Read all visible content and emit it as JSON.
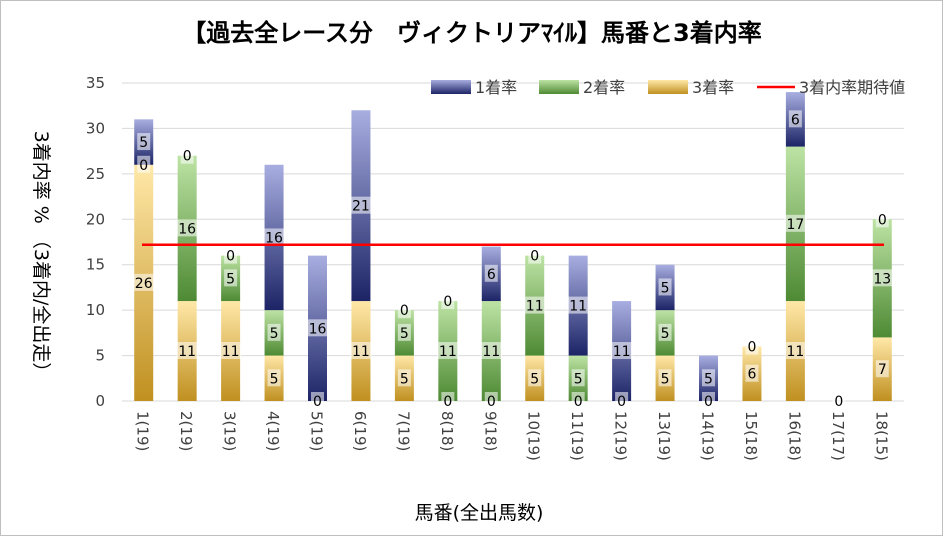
{
  "chart_data": {
    "type": "bar",
    "stacked": true,
    "title": "【過去全レース分　ヴィクトリアﾏｲﾙ】馬番と3着内率",
    "xlabel": "馬番(全出馬数)",
    "ylabel": "3着内率 %  （3着内/全出走）",
    "ylim": [
      0,
      35
    ],
    "yticks": [
      0,
      5,
      10,
      15,
      20,
      25,
      30,
      35
    ],
    "grid": true,
    "legend_position": "top-right",
    "categories": [
      "1(19)",
      "2(19)",
      "3(19)",
      "4(19)",
      "5(19)",
      "6(19)",
      "7(19)",
      "8(18)",
      "9(18)",
      "10(19)",
      "11(19)",
      "12(19)",
      "13(19)",
      "14(19)",
      "15(18)",
      "16(18)",
      "17(17)",
      "18(15)"
    ],
    "series": [
      {
        "name": "3着率",
        "color": "#e8b84a",
        "values": [
          26,
          11,
          11,
          5,
          0,
          11,
          5,
          0,
          0,
          5,
          0,
          0,
          5,
          0,
          6,
          11,
          0,
          7
        ]
      },
      {
        "name": "2着率",
        "color": "#6aa84f",
        "values": [
          0,
          16,
          5,
          5,
          0,
          0,
          5,
          11,
          11,
          11,
          5,
          0,
          5,
          0,
          0,
          17,
          0,
          13
        ]
      },
      {
        "name": "1着率",
        "color": "#4a55a2",
        "values": [
          5,
          0,
          0,
          16,
          16,
          21,
          0,
          0,
          6,
          0,
          11,
          11,
          5,
          5,
          0,
          6,
          0,
          0
        ]
      }
    ],
    "data_labels": {
      "3着率": [
        "26",
        "11",
        "11",
        "5",
        "0",
        "11",
        "5",
        "0",
        "0",
        "5",
        "0",
        "0",
        "5",
        "0",
        "6",
        "11",
        "0",
        "7"
      ],
      "2着率": [
        "0",
        "16",
        "5",
        "5",
        "",
        "",
        "5",
        "11",
        "11",
        "11",
        "5",
        "",
        "5",
        "",
        "",
        "17",
        "",
        "13"
      ],
      "1着率": [
        "5",
        "0",
        "0",
        "16",
        "16",
        "21",
        "0",
        "0",
        "6",
        "0",
        "11",
        "11",
        "5",
        "5",
        "0",
        "6",
        "",
        "0"
      ]
    },
    "reference_line": {
      "name": "3着内率期待値",
      "value": 17.2,
      "color": "#ff0000"
    }
  }
}
